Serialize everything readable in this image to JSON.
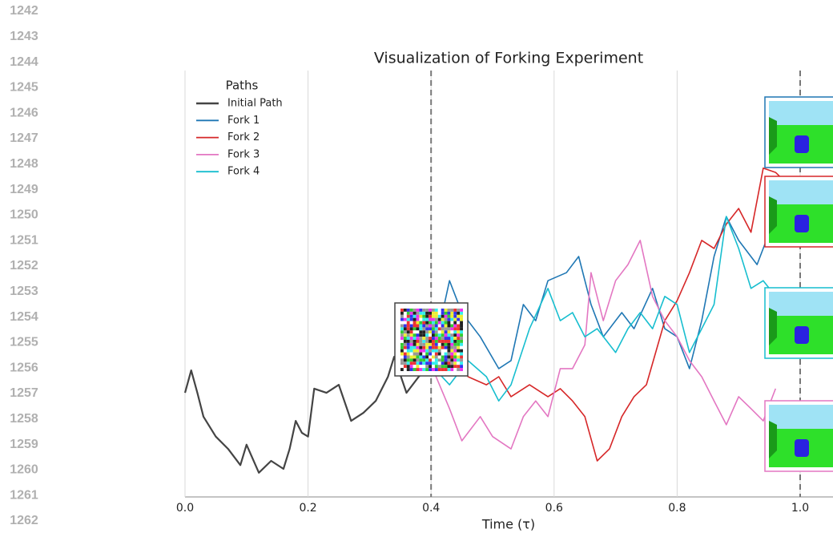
{
  "line_numbers": [
    "1242",
    "1243",
    "1244",
    "1245",
    "1246",
    "1247",
    "1248",
    "1249",
    "1250",
    "1251",
    "1252",
    "1253",
    "1254",
    "1255",
    "1256",
    "1257",
    "1258",
    "1259",
    "1260",
    "1261",
    "1262"
  ],
  "chart_data": {
    "type": "line",
    "title": "Visualization of Forking Experiment",
    "xlabel": "Time (τ)",
    "xlim": [
      0,
      1.05
    ],
    "ylim": [
      0,
      100
    ],
    "xticks": [
      {
        "value": 0,
        "label": "0.0"
      },
      {
        "value": 0.2,
        "label": "0.2"
      },
      {
        "value": 0.4,
        "label": "0.4"
      },
      {
        "value": 0.6,
        "label": "0.6"
      },
      {
        "value": 0.8,
        "label": "0.8"
      },
      {
        "value": 1,
        "label": "1.0"
      }
    ],
    "grid": true,
    "dashed_vlines": [
      0.4,
      1
    ],
    "legend_title": "Paths",
    "legend_loc": "upper left",
    "series": [
      {
        "name": "Initial Path",
        "color": "#444444",
        "x": [
          0,
          0.01,
          0.02,
          0.03,
          0.05,
          0.07,
          0.09,
          0.1,
          0.12,
          0.14,
          0.16,
          0.17,
          0.18,
          0.19,
          0.2,
          0.21,
          0.23,
          0.25,
          0.27,
          0.29,
          0.31,
          0.33,
          0.34,
          0.36,
          0.38,
          0.4
        ],
        "values": [
          24.5,
          29.8,
          24.5,
          18.9,
          14.2,
          11.3,
          7.5,
          12.3,
          5.7,
          8.5,
          6.6,
          11.3,
          17.9,
          15.1,
          14.2,
          25.5,
          24.5,
          26.4,
          17.9,
          19.8,
          22.6,
          28.3,
          33,
          24.5,
          28.3,
          31.1
        ]
      },
      {
        "name": "Fork 1",
        "color": "#1f77b4",
        "x": [
          0.4,
          0.43,
          0.45,
          0.48,
          0.51,
          0.53,
          0.55,
          0.57,
          0.59,
          0.62,
          0.64,
          0.66,
          0.68,
          0.71,
          0.73,
          0.76,
          0.78,
          0.8,
          0.82,
          0.84,
          0.86,
          0.88,
          0.9,
          0.93,
          0.95,
          0.97,
          0.98
        ],
        "values": [
          31.1,
          50.9,
          43.4,
          37.7,
          30.2,
          32.1,
          45.3,
          41.5,
          50.9,
          52.8,
          56.6,
          45.3,
          37.7,
          43.4,
          39.6,
          49.1,
          39.6,
          37.7,
          30.2,
          41.5,
          56.6,
          66,
          60.4,
          54.7,
          62.3,
          62.3,
          65.1
        ]
      },
      {
        "name": "Fork 2",
        "color": "#d62728",
        "x": [
          0.4,
          0.43,
          0.46,
          0.49,
          0.51,
          0.53,
          0.56,
          0.59,
          0.61,
          0.63,
          0.65,
          0.67,
          0.69,
          0.71,
          0.73,
          0.75,
          0.78,
          0.8,
          0.82,
          0.84,
          0.86,
          0.88,
          0.9,
          0.92,
          0.94,
          0.96,
          0.98
        ],
        "values": [
          31.1,
          35.8,
          28.3,
          26.4,
          28.3,
          23.6,
          26.4,
          23.6,
          25.5,
          22.6,
          18.9,
          8.5,
          11.3,
          18.9,
          23.6,
          26.4,
          41.5,
          46.2,
          52.8,
          60.4,
          58.5,
          64.2,
          67.9,
          62.3,
          77.4,
          76.4,
          73.6
        ]
      },
      {
        "name": "Fork 3",
        "color": "#e377c2",
        "x": [
          0.4,
          0.43,
          0.45,
          0.48,
          0.5,
          0.53,
          0.55,
          0.57,
          0.59,
          0.61,
          0.63,
          0.65,
          0.66,
          0.68,
          0.7,
          0.72,
          0.74,
          0.76,
          0.78,
          0.8,
          0.82,
          0.84,
          0.86,
          0.88,
          0.9,
          0.92,
          0.94,
          0.96
        ],
        "values": [
          31.1,
          20.8,
          13.2,
          18.9,
          14.2,
          11.3,
          18.9,
          22.6,
          18.9,
          30.2,
          30.2,
          35.8,
          52.8,
          41.5,
          50.9,
          54.7,
          60.4,
          47.2,
          41.5,
          37.7,
          32.1,
          28.3,
          22.6,
          17,
          23.6,
          20.8,
          17.9,
          25.5
        ]
      },
      {
        "name": "Fork 4",
        "color": "#17becf",
        "x": [
          0.4,
          0.43,
          0.46,
          0.49,
          0.51,
          0.53,
          0.56,
          0.59,
          0.61,
          0.63,
          0.65,
          0.67,
          0.7,
          0.72,
          0.74,
          0.76,
          0.78,
          0.8,
          0.82,
          0.84,
          0.86,
          0.88,
          0.9,
          0.92,
          0.94,
          0.96,
          0.98
        ],
        "values": [
          31.1,
          26.4,
          32.1,
          28.3,
          22.6,
          26.4,
          39.6,
          49.1,
          41.5,
          43.4,
          37.7,
          39.6,
          34,
          39.6,
          43.4,
          39.6,
          47.2,
          45.3,
          34,
          39.6,
          45.3,
          66,
          58.5,
          49.1,
          50.9,
          47.2,
          49.1
        ]
      }
    ]
  }
}
